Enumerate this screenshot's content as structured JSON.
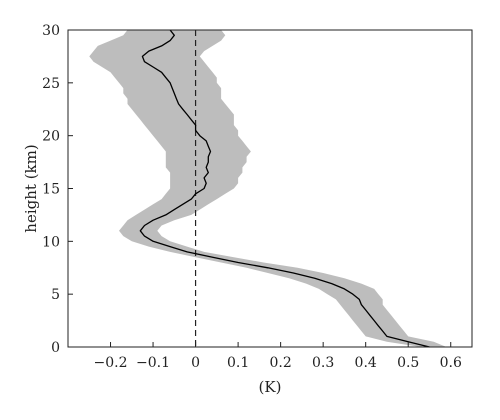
{
  "chart_data": {
    "type": "line",
    "title": "",
    "xlabel": "(K)",
    "ylabel": "height (km)",
    "xlim": [
      -0.3,
      0.65
    ],
    "ylim": [
      0,
      30
    ],
    "xticks": [
      -0.2,
      -0.1,
      0,
      0.1,
      0.2,
      0.3,
      0.4,
      0.5,
      0.6
    ],
    "xtick_labels": [
      "−0.2",
      "−0.1",
      "0",
      "0.1",
      "0.2",
      "0.3",
      "0.4",
      "0.5",
      "0.6"
    ],
    "yticks": [
      0,
      5,
      10,
      15,
      20,
      25,
      30
    ],
    "ytick_labels": [
      "0",
      "5",
      "10",
      "15",
      "20",
      "25",
      "30"
    ],
    "grid": false,
    "reference_line": {
      "x": 0,
      "style": "dashed"
    },
    "series": [
      {
        "role": "mean",
        "color": "#000000",
        "y": [
          0,
          0.5,
          1,
          1.5,
          2,
          2.5,
          3,
          3.5,
          4,
          4.5,
          5,
          5.5,
          6,
          6.5,
          7,
          7.5,
          8,
          8.5,
          9,
          9.5,
          10,
          10.5,
          11,
          11.5,
          12,
          12.5,
          13,
          13.5,
          14,
          14.5,
          15,
          15.5,
          16,
          16.5,
          17,
          17.5,
          18,
          18.5,
          19,
          19.5,
          20,
          20.5,
          21,
          21.5,
          22,
          22.5,
          23,
          23.5,
          24,
          24.5,
          25,
          25.5,
          26,
          26.5,
          27,
          27.5,
          28,
          28.5,
          29,
          29.5,
          30
        ],
        "x": [
          0.55,
          0.5,
          0.45,
          0.44,
          0.43,
          0.42,
          0.41,
          0.4,
          0.39,
          0.385,
          0.37,
          0.35,
          0.32,
          0.28,
          0.23,
          0.17,
          0.1,
          0.04,
          -0.02,
          -0.06,
          -0.1,
          -0.12,
          -0.13,
          -0.12,
          -0.1,
          -0.07,
          -0.05,
          -0.03,
          -0.01,
          0.0,
          0.02,
          0.025,
          0.02,
          0.03,
          0.025,
          0.03,
          0.03,
          0.035,
          0.03,
          0.025,
          0.01,
          0.0,
          0.0,
          -0.01,
          -0.02,
          -0.03,
          -0.04,
          -0.045,
          -0.05,
          -0.055,
          -0.06,
          -0.07,
          -0.08,
          -0.1,
          -0.12,
          -0.125,
          -0.11,
          -0.08,
          -0.06,
          -0.05,
          -0.06
        ]
      },
      {
        "role": "spread",
        "color": "#bdbdbd",
        "y": [
          0,
          0.5,
          1,
          1.5,
          2,
          2.5,
          3,
          3.5,
          4,
          4.5,
          5,
          5.5,
          6,
          6.5,
          7,
          7.5,
          8,
          8.5,
          9,
          9.5,
          10,
          10.5,
          11,
          11.5,
          12,
          12.5,
          13,
          13.5,
          14,
          14.5,
          15,
          15.5,
          16,
          16.5,
          17,
          17.5,
          18,
          18.5,
          19,
          19.5,
          20,
          20.5,
          21,
          21.5,
          22,
          22.5,
          23,
          23.5,
          24,
          24.5,
          25,
          25.5,
          26,
          26.5,
          27,
          27.5,
          28,
          28.5,
          29,
          29.5,
          30
        ],
        "x_low": [
          0.53,
          0.45,
          0.4,
          0.39,
          0.38,
          0.37,
          0.36,
          0.35,
          0.34,
          0.33,
          0.31,
          0.29,
          0.26,
          0.22,
          0.17,
          0.12,
          0.06,
          0.0,
          -0.06,
          -0.11,
          -0.15,
          -0.17,
          -0.18,
          -0.17,
          -0.16,
          -0.14,
          -0.12,
          -0.1,
          -0.08,
          -0.07,
          -0.06,
          -0.06,
          -0.06,
          -0.06,
          -0.07,
          -0.07,
          -0.07,
          -0.07,
          -0.08,
          -0.09,
          -0.1,
          -0.11,
          -0.12,
          -0.13,
          -0.14,
          -0.15,
          -0.16,
          -0.16,
          -0.17,
          -0.17,
          -0.18,
          -0.19,
          -0.2,
          -0.22,
          -0.24,
          -0.25,
          -0.24,
          -0.23,
          -0.2,
          -0.17,
          -0.16
        ],
        "x_high": [
          0.59,
          0.56,
          0.5,
          0.49,
          0.48,
          0.47,
          0.46,
          0.45,
          0.44,
          0.44,
          0.43,
          0.42,
          0.39,
          0.35,
          0.3,
          0.24,
          0.16,
          0.09,
          0.02,
          -0.02,
          -0.06,
          -0.08,
          -0.09,
          -0.08,
          -0.05,
          -0.01,
          0.01,
          0.03,
          0.05,
          0.07,
          0.09,
          0.1,
          0.1,
          0.11,
          0.11,
          0.12,
          0.12,
          0.13,
          0.12,
          0.11,
          0.1,
          0.1,
          0.09,
          0.09,
          0.09,
          0.08,
          0.07,
          0.06,
          0.06,
          0.06,
          0.05,
          0.05,
          0.04,
          0.03,
          0.02,
          0.01,
          0.02,
          0.04,
          0.06,
          0.07,
          0.06
        ]
      }
    ]
  }
}
